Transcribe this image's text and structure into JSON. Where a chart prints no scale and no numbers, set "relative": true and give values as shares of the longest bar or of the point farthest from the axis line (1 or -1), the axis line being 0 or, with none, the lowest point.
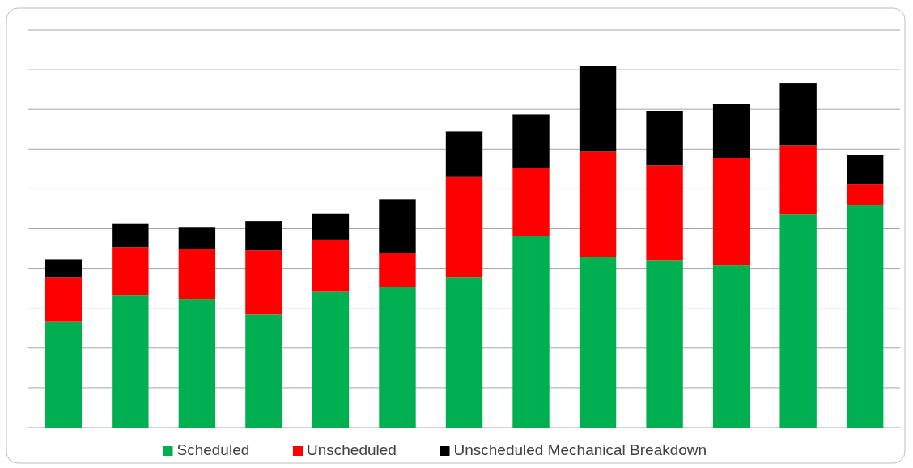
{
  "chart_data": {
    "type": "bar",
    "stacked": true,
    "relative": true,
    "grid": true,
    "legend": "bottom",
    "categories": [
      null,
      null,
      null,
      null,
      null,
      null,
      null,
      null,
      null,
      null,
      null,
      null,
      null
    ],
    "series": [
      {
        "name": "Scheduled",
        "color": "#00b050",
        "values": [
          0.292,
          0.367,
          0.356,
          0.313,
          0.375,
          0.388,
          0.416,
          0.531,
          0.471,
          0.463,
          0.45,
          0.591,
          0.616
        ]
      },
      {
        "name": "Unscheduled",
        "color": "#ff0000",
        "values": [
          0.124,
          0.132,
          0.139,
          0.177,
          0.145,
          0.094,
          0.279,
          0.186,
          0.292,
          0.262,
          0.296,
          0.19,
          0.058
        ]
      },
      {
        "name": "Unscheduled Mechanical Breakdown",
        "color": "#000000",
        "values": [
          0.049,
          0.064,
          0.06,
          0.081,
          0.072,
          0.149,
          0.124,
          0.149,
          0.237,
          0.151,
          0.149,
          0.171,
          0.081
        ]
      }
    ]
  }
}
